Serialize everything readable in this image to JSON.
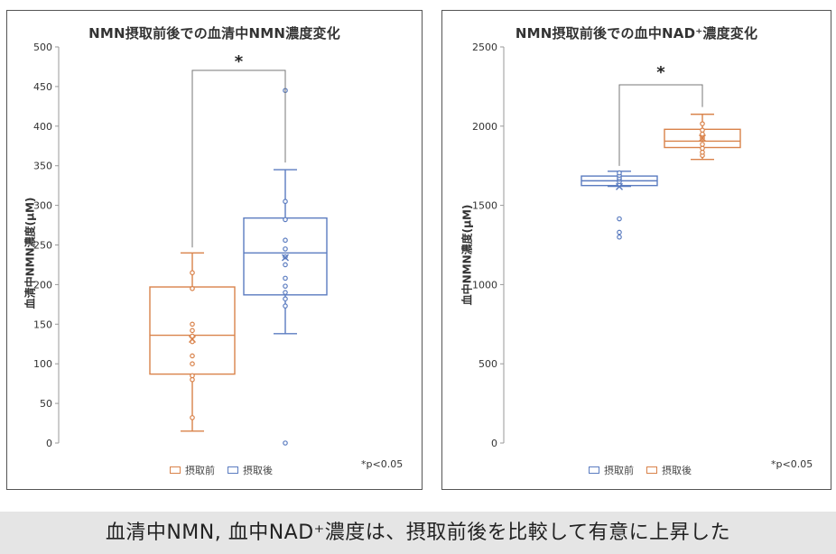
{
  "colors": {
    "orange": "#d9824a",
    "blue": "#5b7cc0",
    "axis": "#999999",
    "bracket": "#777777"
  },
  "caption": "血清中NMN, 血中NAD⁺濃度は、摂取前後を比較して有意に上昇した",
  "chart_data": [
    {
      "type": "box",
      "title": "NMN摂取前後での血清中NMN濃度変化",
      "ylabel": "血清中NMN濃度(μM)",
      "xlabel": "",
      "ylim": [
        0,
        500
      ],
      "yticks": [
        "0",
        "50",
        "100",
        "150",
        "200",
        "250",
        "300",
        "350",
        "400",
        "450",
        "500"
      ],
      "legend": [
        {
          "label": "摂取前",
          "color": "orange"
        },
        {
          "label": "摂取後",
          "color": "blue"
        }
      ],
      "significance": "*",
      "note": "*p<0.05",
      "series": [
        {
          "name": "摂取前",
          "color": "orange",
          "whisker_low": 15,
          "q1": 87,
          "median": 136,
          "q3": 197,
          "whisker_high": 240,
          "mean": 131,
          "points": [
            32,
            80,
            85,
            100,
            110,
            128,
            135,
            142,
            150,
            195,
            215
          ]
        },
        {
          "name": "摂取後",
          "color": "blue",
          "whisker_low": 138,
          "q1": 187,
          "median": 240,
          "q3": 284,
          "whisker_high": 345,
          "mean": 234,
          "points": [
            0,
            173,
            182,
            190,
            198,
            208,
            225,
            235,
            245,
            256,
            282,
            305,
            445
          ]
        }
      ]
    },
    {
      "type": "box",
      "title": "NMN摂取前後での血中NAD⁺濃度変化",
      "ylabel": "血中NMN濃度(μM)",
      "xlabel": "",
      "ylim": [
        0,
        2500
      ],
      "yticks": [
        "0",
        "500",
        "1000",
        "1500",
        "2000",
        "2500"
      ],
      "legend": [
        {
          "label": "摂取前",
          "color": "blue"
        },
        {
          "label": "摂取後",
          "color": "orange"
        }
      ],
      "significance": "*",
      "note": "*p<0.05",
      "series": [
        {
          "name": "摂取前",
          "color": "blue",
          "whisker_low": 1620,
          "q1": 1625,
          "median": 1655,
          "q3": 1685,
          "whisker_high": 1715,
          "mean": 1618,
          "points": [
            1300,
            1330,
            1415,
            1630,
            1650,
            1665,
            1675,
            1690,
            1705
          ]
        },
        {
          "name": "摂取後",
          "color": "orange",
          "whisker_low": 1790,
          "q1": 1865,
          "median": 1905,
          "q3": 1980,
          "whisker_high": 2075,
          "mean": 1925,
          "points": [
            1815,
            1835,
            1860,
            1885,
            1925,
            1950,
            1975,
            2015
          ]
        }
      ]
    }
  ]
}
